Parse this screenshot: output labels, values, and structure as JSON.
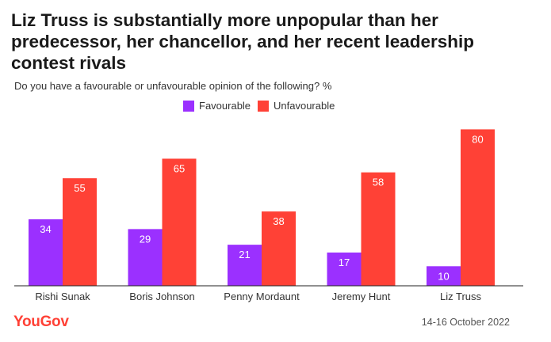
{
  "title": "Liz Truss is substantially more unpopular than her predecessor, her chancellor, and her recent leadership contest rivals",
  "subtitle": "Do you have a favourable or unfavourable opinion of the following? %",
  "legend": {
    "favourable": "Favourable",
    "unfavourable": "Unfavourable"
  },
  "colors": {
    "favourable": "#9b30ff",
    "unfavourable": "#ff4136",
    "brand": "#ff4136",
    "axis": "#222222"
  },
  "footer": {
    "brand": "YouGov",
    "date": "14-16 October 2022"
  },
  "chart_data": {
    "type": "bar",
    "title": "Liz Truss is substantially more unpopular than her predecessor, her chancellor, and her recent leadership contest rivals",
    "subtitle": "Do you have a favourable or unfavourable opinion of the following? %",
    "categories": [
      "Rishi Sunak",
      "Boris Johnson",
      "Penny Mordaunt",
      "Jeremy Hunt",
      "Liz Truss"
    ],
    "series": [
      {
        "name": "Favourable",
        "values": [
          34,
          29,
          21,
          17,
          10
        ]
      },
      {
        "name": "Unfavourable",
        "values": [
          55,
          65,
          38,
          58,
          80
        ]
      }
    ],
    "xlabel": "",
    "ylabel": "%",
    "ylim": [
      0,
      80
    ],
    "grid": false,
    "legend_position": "top-center",
    "data_labels": true
  }
}
